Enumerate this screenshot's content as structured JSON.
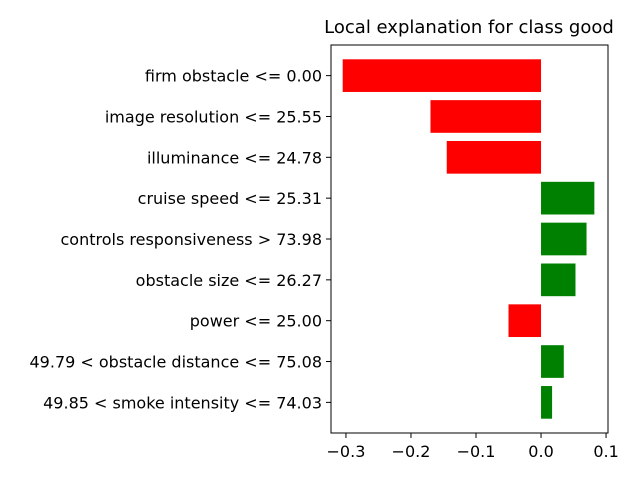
{
  "chart_data": {
    "type": "bar",
    "orientation": "horizontal",
    "title": "Local explanation for class good",
    "xlabel": "",
    "ylabel": "",
    "categories": [
      "firm obstacle <= 0.00",
      "image resolution <= 25.55",
      "illuminance <= 24.78",
      "cruise speed <= 25.31",
      "controls responsiveness > 73.98",
      "obstacle size <= 26.27",
      "power <= 25.00",
      "49.79 < obstacle distance <= 75.08",
      "49.85 < smoke intensity <= 74.03"
    ],
    "values": [
      -0.305,
      -0.17,
      -0.145,
      0.082,
      0.07,
      0.053,
      -0.05,
      0.035,
      0.017
    ],
    "xlim": [
      -0.323,
      0.103
    ],
    "xticks": [
      -0.3,
      -0.2,
      -0.1,
      0.0,
      0.1
    ],
    "xtick_labels": [
      "−0.3",
      "−0.2",
      "−0.1",
      "0.0",
      "0.1"
    ],
    "grid": false,
    "colors": {
      "positive": "#008000",
      "negative": "#ff0000"
    }
  }
}
